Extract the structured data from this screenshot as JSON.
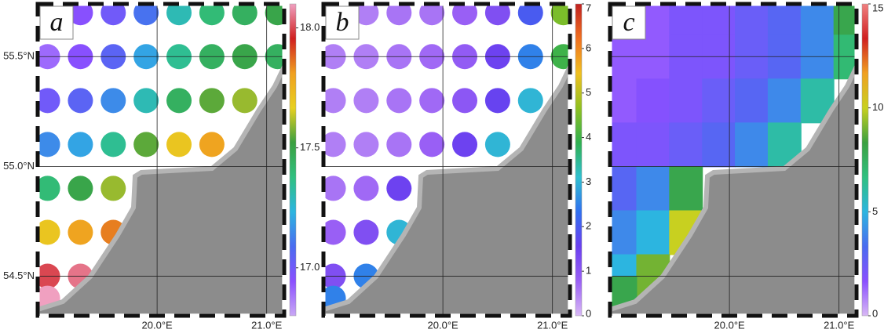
{
  "chart_data": [
    {
      "type": "map",
      "label": "a",
      "lons": [
        19.0,
        19.3,
        19.6,
        19.9,
        20.2,
        20.5,
        20.8,
        21.1
      ],
      "lats": [
        55.7,
        55.5,
        55.3,
        55.1,
        54.9,
        54.7,
        54.5,
        54.4
      ],
      "values": [
        [
          16.9,
          16.95,
          17.0,
          17.1,
          17.3,
          17.4,
          17.45,
          17.5
        ],
        [
          16.9,
          16.95,
          17.05,
          17.2,
          17.35,
          17.45,
          17.5,
          17.45
        ],
        [
          17.0,
          17.05,
          17.15,
          17.3,
          17.45,
          17.55,
          17.6,
          null
        ],
        [
          17.15,
          17.2,
          17.35,
          17.55,
          17.7,
          17.8,
          null,
          null
        ],
        [
          17.4,
          17.5,
          17.6,
          null,
          null,
          null,
          null,
          null
        ],
        [
          17.7,
          17.8,
          17.85,
          null,
          null,
          null,
          null,
          null
        ],
        [
          18.0,
          18.05,
          null,
          null,
          null,
          null,
          null,
          null
        ],
        [
          18.1,
          null,
          null,
          null,
          null,
          null,
          null,
          null
        ]
      ],
      "xlim": [
        18.91,
        21.16
      ],
      "ylim": [
        54.32,
        55.74
      ],
      "xticks": [
        {
          "value": 20.0,
          "label": "20.0°E"
        },
        {
          "value": 21.0,
          "label": "21.0°E"
        }
      ],
      "yticks": [
        {
          "value": 54.5,
          "label": "54.5°N"
        },
        {
          "value": 55.0,
          "label": "55.0°N"
        },
        {
          "value": 55.5,
          "label": "55.5°N"
        }
      ],
      "ytick_labels": true,
      "clim": [
        16.8,
        18.1
      ],
      "cticks": [
        {
          "value": 17.0,
          "label": "17.0"
        },
        {
          "value": 17.5,
          "label": "17.5"
        },
        {
          "value": 18.0,
          "label": "18.0"
        }
      ],
      "colormap": [
        "#c9a8f5",
        "#8a4fff",
        "#4a6cf0",
        "#2cb5e0",
        "#30c080",
        "#3ba040",
        "#e8d020",
        "#f0a020",
        "#d02020",
        "#f0a0c0"
      ],
      "grid": true
    },
    {
      "type": "map",
      "label": "b",
      "lons": [
        19.0,
        19.3,
        19.6,
        19.9,
        20.2,
        20.5,
        20.8,
        21.1
      ],
      "lats": [
        55.7,
        55.5,
        55.3,
        55.1,
        54.9,
        54.7,
        54.5,
        54.4
      ],
      "values": [
        [
          0.5,
          0.5,
          0.6,
          0.6,
          0.8,
          1.2,
          2.0,
          4.5
        ],
        [
          0.5,
          0.5,
          0.6,
          0.7,
          0.9,
          1.5,
          2.5,
          4.0
        ],
        [
          0.5,
          0.5,
          0.6,
          0.7,
          1.0,
          1.6,
          3.0,
          null
        ],
        [
          0.5,
          0.5,
          0.6,
          0.8,
          1.5,
          3.0,
          null,
          null
        ],
        [
          0.6,
          0.7,
          1.5,
          null,
          null,
          null,
          null,
          null
        ],
        [
          0.8,
          1.2,
          3.0,
          null,
          null,
          null,
          null,
          null
        ],
        [
          1.2,
          2.5,
          null,
          null,
          null,
          null,
          null,
          null
        ],
        [
          2.5,
          null,
          null,
          null,
          null,
          null,
          null,
          null
        ]
      ],
      "xlim": [
        18.91,
        21.16
      ],
      "ylim": [
        54.32,
        55.74
      ],
      "xticks": [
        {
          "value": 20.0,
          "label": "20.0°E"
        },
        {
          "value": 21.0,
          "label": "21.0°E"
        }
      ],
      "yticks": [
        54.5,
        55.0,
        55.5
      ],
      "ytick_labels": false,
      "clim": [
        0,
        7
      ],
      "cticks": [
        0,
        1,
        2,
        3,
        4,
        5,
        6,
        7
      ],
      "colormap": [
        "#d8b8f5",
        "#9a60f5",
        "#6a40f0",
        "#3070f0",
        "#30c0d0",
        "#30b050",
        "#90c020",
        "#f0c020",
        "#f07020",
        "#c02020"
      ],
      "grid": true
    },
    {
      "type": "map",
      "label": "c",
      "lons": [
        19.0,
        19.3,
        19.6,
        19.9,
        20.2,
        20.5,
        20.8,
        21.1
      ],
      "lats": [
        55.7,
        55.5,
        55.3,
        55.1,
        54.9,
        54.7,
        54.5,
        54.4
      ],
      "values": [
        [
          1.5,
          1.5,
          2,
          2,
          2.5,
          3,
          4,
          8
        ],
        [
          1.5,
          1.5,
          2,
          2,
          2.5,
          3,
          4,
          7
        ],
        [
          1.5,
          1.8,
          2,
          2.5,
          3,
          4,
          6,
          null
        ],
        [
          2,
          2,
          2.5,
          3,
          4,
          6,
          null,
          null
        ],
        [
          3,
          4,
          8,
          null,
          null,
          null,
          null,
          null
        ],
        [
          4,
          5,
          10,
          null,
          null,
          null,
          null,
          null
        ],
        [
          5,
          9,
          null,
          null,
          null,
          null,
          null,
          null
        ],
        [
          8,
          null,
          null,
          null,
          null,
          null,
          null,
          null
        ]
      ],
      "xlim": [
        18.91,
        21.16
      ],
      "ylim": [
        54.32,
        55.74
      ],
      "xticks": [
        {
          "value": 20.0,
          "label": "20.0°E"
        },
        {
          "value": 21.0,
          "label": "21.0°E"
        }
      ],
      "yticks": [
        54.5,
        55.0,
        55.5
      ],
      "ytick_labels": false,
      "clim": [
        0,
        15
      ],
      "cticks": [
        0,
        5,
        10,
        15
      ],
      "colormap": [
        "#d8b8f5",
        "#8a4fff",
        "#4a6cf0",
        "#2cb5e0",
        "#30c080",
        "#3ba040",
        "#c8d020",
        "#f0a020",
        "#d02020",
        "#f08080"
      ],
      "grid": true
    }
  ]
}
